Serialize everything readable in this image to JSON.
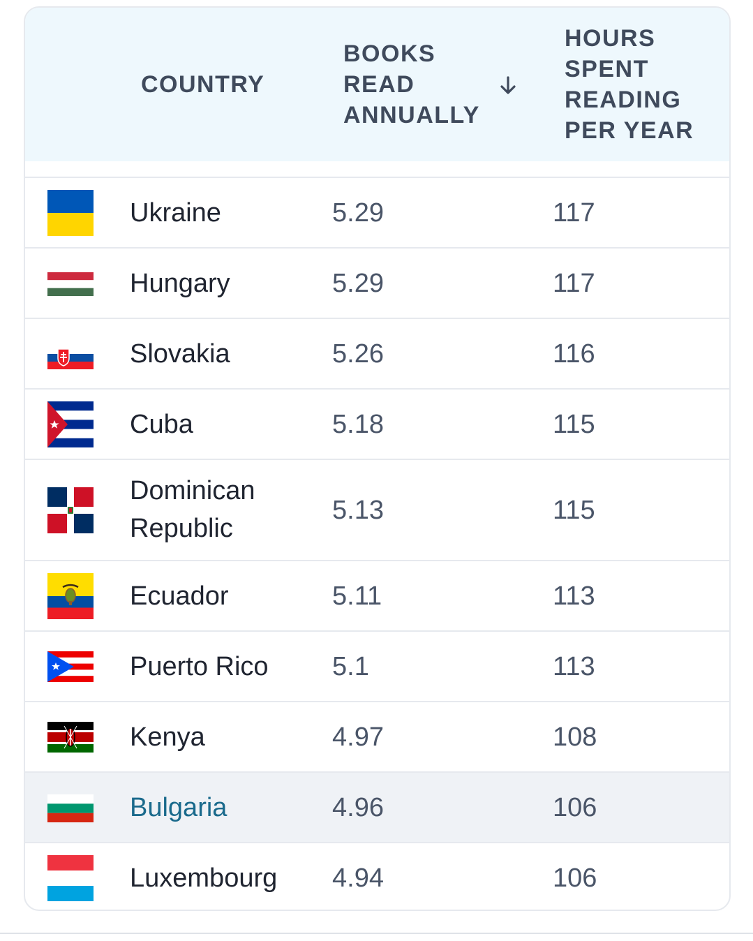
{
  "table": {
    "headers": {
      "country": "COUNTRY",
      "books": [
        "BOOKS",
        "READ",
        "ANNUALLY"
      ],
      "hours": [
        "HOURS",
        "SPENT",
        "READING",
        "PER YEAR"
      ],
      "sort_icon": "arrow-down-icon"
    },
    "rows": [
      {
        "country": "Ukraine",
        "books": "5.29",
        "hours": "117",
        "flag": "ukraine-flag"
      },
      {
        "country": "Hungary",
        "books": "5.29",
        "hours": "117",
        "flag": "hungary-flag"
      },
      {
        "country": "Slovakia",
        "books": "5.26",
        "hours": "116",
        "flag": "slovakia-flag"
      },
      {
        "country": "Cuba",
        "books": "5.18",
        "hours": "115",
        "flag": "cuba-flag"
      },
      {
        "country_lines": [
          "Dominican",
          "Republic"
        ],
        "books": "5.13",
        "hours": "115",
        "flag": "dominican-republic-flag"
      },
      {
        "country": "Ecuador",
        "books": "5.11",
        "hours": "113",
        "flag": "ecuador-flag"
      },
      {
        "country": "Puerto Rico",
        "books": "5.1",
        "hours": "113",
        "flag": "puerto-rico-flag"
      },
      {
        "country": "Kenya",
        "books": "4.97",
        "hours": "108",
        "flag": "kenya-flag"
      },
      {
        "country": "Bulgaria",
        "books": "4.96",
        "hours": "106",
        "flag": "bulgaria-flag",
        "highlighted": true
      },
      {
        "country": "Luxembourg",
        "books": "4.94",
        "hours": "106",
        "flag": "luxembourg-flag"
      }
    ]
  },
  "colors": {
    "header_bg": "#eef8fd",
    "highlight_row_bg": "#eff2f6",
    "highlight_text": "#1a6a8c",
    "border": "#e6e9ee"
  }
}
